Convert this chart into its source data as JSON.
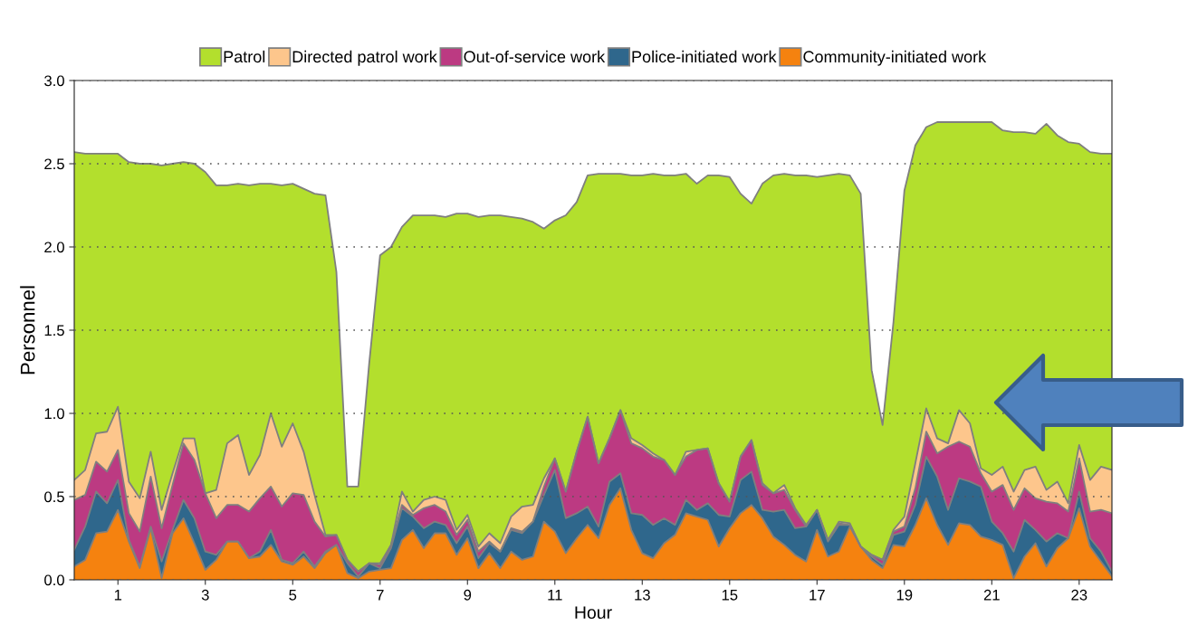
{
  "chart_data": {
    "type": "area",
    "stacked": true,
    "xlabel": "Hour",
    "ylabel": "Personnel",
    "x": [
      0,
      0.25,
      0.5,
      0.75,
      1,
      1.25,
      1.5,
      1.75,
      2,
      2.25,
      2.5,
      2.75,
      3,
      3.25,
      3.5,
      3.75,
      4,
      4.25,
      4.5,
      4.75,
      5,
      5.25,
      5.5,
      5.75,
      6,
      6.25,
      6.5,
      6.75,
      7,
      7.25,
      7.5,
      7.75,
      8,
      8.25,
      8.5,
      8.75,
      9,
      9.25,
      9.5,
      9.75,
      10,
      10.25,
      10.5,
      10.75,
      11,
      11.25,
      11.5,
      11.75,
      12,
      12.25,
      12.5,
      12.75,
      13,
      13.25,
      13.5,
      13.75,
      14,
      14.25,
      14.5,
      14.75,
      15,
      15.25,
      15.5,
      15.75,
      16,
      16.25,
      16.5,
      16.75,
      17,
      17.25,
      17.5,
      17.75,
      18,
      18.25,
      18.5,
      18.75,
      19,
      19.25,
      19.5,
      19.75,
      20,
      20.25,
      20.5,
      20.75,
      21,
      21.25,
      21.5,
      21.75,
      22,
      22.25,
      22.5,
      22.75,
      23,
      23.25,
      23.5,
      23.75
    ],
    "series": [
      {
        "name": "Community-initiated work",
        "color": "#f5820f",
        "values": [
          0.08,
          0.12,
          0.28,
          0.29,
          0.42,
          0.23,
          0.07,
          0.31,
          0.01,
          0.28,
          0.37,
          0.22,
          0.06,
          0.12,
          0.23,
          0.23,
          0.13,
          0.14,
          0.21,
          0.11,
          0.09,
          0.14,
          0.07,
          0.16,
          0.21,
          0.04,
          0.01,
          0.05,
          0.06,
          0.07,
          0.24,
          0.3,
          0.19,
          0.28,
          0.28,
          0.15,
          0.25,
          0.07,
          0.16,
          0.07,
          0.17,
          0.12,
          0.14,
          0.35,
          0.29,
          0.16,
          0.25,
          0.33,
          0.25,
          0.45,
          0.55,
          0.3,
          0.16,
          0.13,
          0.22,
          0.27,
          0.4,
          0.38,
          0.36,
          0.2,
          0.31,
          0.4,
          0.45,
          0.37,
          0.26,
          0.21,
          0.15,
          0.11,
          0.3,
          0.14,
          0.17,
          0.32,
          0.2,
          0.12,
          0.07,
          0.21,
          0.2,
          0.33,
          0.49,
          0.33,
          0.21,
          0.34,
          0.33,
          0.26,
          0.24,
          0.21,
          0.01,
          0.14,
          0.22,
          0.08,
          0.19,
          0.25,
          0.43,
          0.2,
          0.11,
          0.02
        ]
      },
      {
        "name": "Police-initiated work",
        "color": "#2f678c",
        "values": [
          0.1,
          0.2,
          0.25,
          0.17,
          0.18,
          0.01,
          0.01,
          0.01,
          0.1,
          0.02,
          0.11,
          0.15,
          0.11,
          0.03,
          0.0,
          0.0,
          0.0,
          0.03,
          0.09,
          0.01,
          0.01,
          0.03,
          0.01,
          0.01,
          0.0,
          0.06,
          0.01,
          0.05,
          0.01,
          0.12,
          0.19,
          0.08,
          0.12,
          0.07,
          0.05,
          0.07,
          0.07,
          0.06,
          0.06,
          0.1,
          0.13,
          0.16,
          0.21,
          0.16,
          0.37,
          0.21,
          0.15,
          0.11,
          0.07,
          0.14,
          0.09,
          0.1,
          0.23,
          0.2,
          0.15,
          0.06,
          0.08,
          0.04,
          0.1,
          0.19,
          0.07,
          0.2,
          0.2,
          0.05,
          0.15,
          0.21,
          0.16,
          0.21,
          0.12,
          0.09,
          0.16,
          0.01,
          0.0,
          0.02,
          0.02,
          0.06,
          0.09,
          0.12,
          0.25,
          0.29,
          0.21,
          0.27,
          0.26,
          0.3,
          0.11,
          0.07,
          0.16,
          0.22,
          0.08,
          0.15,
          0.09,
          0.0,
          0.1,
          0.05,
          0.06,
          0.03
        ]
      },
      {
        "name": "Out-of-service work",
        "color": "#bc3a82",
        "values": [
          0.3,
          0.19,
          0.18,
          0.19,
          0.18,
          0.16,
          0.21,
          0.3,
          0.2,
          0.27,
          0.34,
          0.35,
          0.35,
          0.22,
          0.22,
          0.22,
          0.28,
          0.32,
          0.26,
          0.32,
          0.42,
          0.34,
          0.27,
          0.09,
          0.06,
          0.02,
          0.03,
          0.0,
          0.02,
          0.02,
          0.02,
          0.01,
          0.12,
          0.1,
          0.08,
          0.05,
          0.04,
          0.04,
          0.01,
          0.0,
          0.01,
          0.01,
          0.0,
          0.05,
          0.07,
          0.16,
          0.37,
          0.54,
          0.38,
          0.26,
          0.38,
          0.42,
          0.4,
          0.41,
          0.35,
          0.3,
          0.26,
          0.36,
          0.33,
          0.19,
          0.09,
          0.14,
          0.19,
          0.15,
          0.11,
          0.12,
          0.11,
          0.0,
          0.0,
          0.01,
          0.01,
          0.0,
          0.0,
          0.01,
          0.03,
          0.02,
          0.03,
          0.1,
          0.15,
          0.14,
          0.38,
          0.22,
          0.21,
          0.08,
          0.18,
          0.29,
          0.25,
          0.19,
          0.19,
          0.24,
          0.18,
          0.16,
          0.2,
          0.16,
          0.25,
          0.35
        ]
      },
      {
        "name": "Directed patrol work",
        "color": "#fdc68c",
        "values": [
          0.12,
          0.15,
          0.17,
          0.24,
          0.26,
          0.19,
          0.2,
          0.15,
          0.11,
          0.07,
          0.03,
          0.13,
          0.0,
          0.17,
          0.37,
          0.42,
          0.22,
          0.26,
          0.44,
          0.36,
          0.42,
          0.26,
          0.16,
          0.01,
          0.0,
          0.0,
          0.0,
          0.0,
          0.01,
          0.0,
          0.08,
          0.02,
          0.05,
          0.05,
          0.07,
          0.03,
          0.03,
          0.03,
          0.05,
          0.05,
          0.07,
          0.15,
          0.1,
          0.05,
          0.0,
          0.0,
          0.0,
          0.0,
          0.0,
          0.0,
          0.0,
          0.03,
          0.02,
          0.02,
          0.0,
          0.0,
          0.03,
          0.0,
          0.0,
          0.0,
          0.0,
          0.0,
          0.0,
          0.01,
          0.0,
          0.03,
          0.01,
          0.01,
          0.0,
          0.0,
          0.01,
          0.01,
          0.0,
          0.0,
          0.0,
          0.01,
          0.06,
          0.15,
          0.14,
          0.09,
          0.02,
          0.19,
          0.14,
          0.03,
          0.1,
          0.11,
          0.11,
          0.11,
          0.19,
          0.07,
          0.13,
          0.05,
          0.08,
          0.19,
          0.26,
          0.26
        ]
      },
      {
        "name": "Patrol",
        "color": "#b3df2d",
        "values": [
          1.97,
          1.9,
          1.68,
          1.67,
          1.52,
          1.92,
          2.01,
          1.73,
          2.07,
          1.86,
          1.66,
          1.65,
          1.93,
          1.83,
          1.55,
          1.51,
          1.74,
          1.63,
          1.38,
          1.57,
          1.44,
          1.58,
          1.81,
          2.04,
          1.58,
          0.44,
          0.51,
          1.2,
          1.85,
          1.79,
          1.59,
          1.78,
          1.71,
          1.69,
          1.7,
          1.9,
          1.81,
          1.98,
          1.91,
          1.97,
          1.8,
          1.73,
          1.7,
          1.5,
          1.43,
          1.66,
          1.5,
          1.45,
          1.74,
          1.59,
          1.42,
          1.58,
          1.62,
          1.68,
          1.71,
          1.8,
          1.67,
          1.6,
          1.64,
          1.85,
          1.95,
          1.58,
          1.42,
          1.8,
          1.91,
          1.87,
          2.0,
          2.1,
          2.0,
          2.19,
          2.09,
          2.09,
          2.12,
          1.11,
          0.81,
          1.25,
          1.96,
          1.91,
          1.69,
          1.9,
          1.93,
          1.73,
          1.81,
          2.08,
          2.12,
          2.02,
          2.16,
          2.03,
          2.0,
          2.2,
          2.08,
          2.17,
          1.81,
          1.97,
          1.88,
          1.9
        ]
      }
    ],
    "xlim": [
      0,
      23.75
    ],
    "xticks": [
      1,
      3,
      5,
      7,
      9,
      11,
      13,
      15,
      17,
      19,
      21,
      23
    ],
    "ylim": [
      0,
      3.0
    ],
    "yticks": [
      {
        "value": 0,
        "label": "0.0"
      },
      {
        "value": 0.5,
        "label": "0.5"
      },
      {
        "value": 1.0,
        "label": "1.0"
      },
      {
        "value": 1.5,
        "label": "1.5"
      },
      {
        "value": 2.0,
        "label": "2.0"
      },
      {
        "value": 2.5,
        "label": "2.5"
      },
      {
        "value": 3.0,
        "label": "3.0"
      }
    ],
    "grid": "y",
    "legend": "top"
  }
}
